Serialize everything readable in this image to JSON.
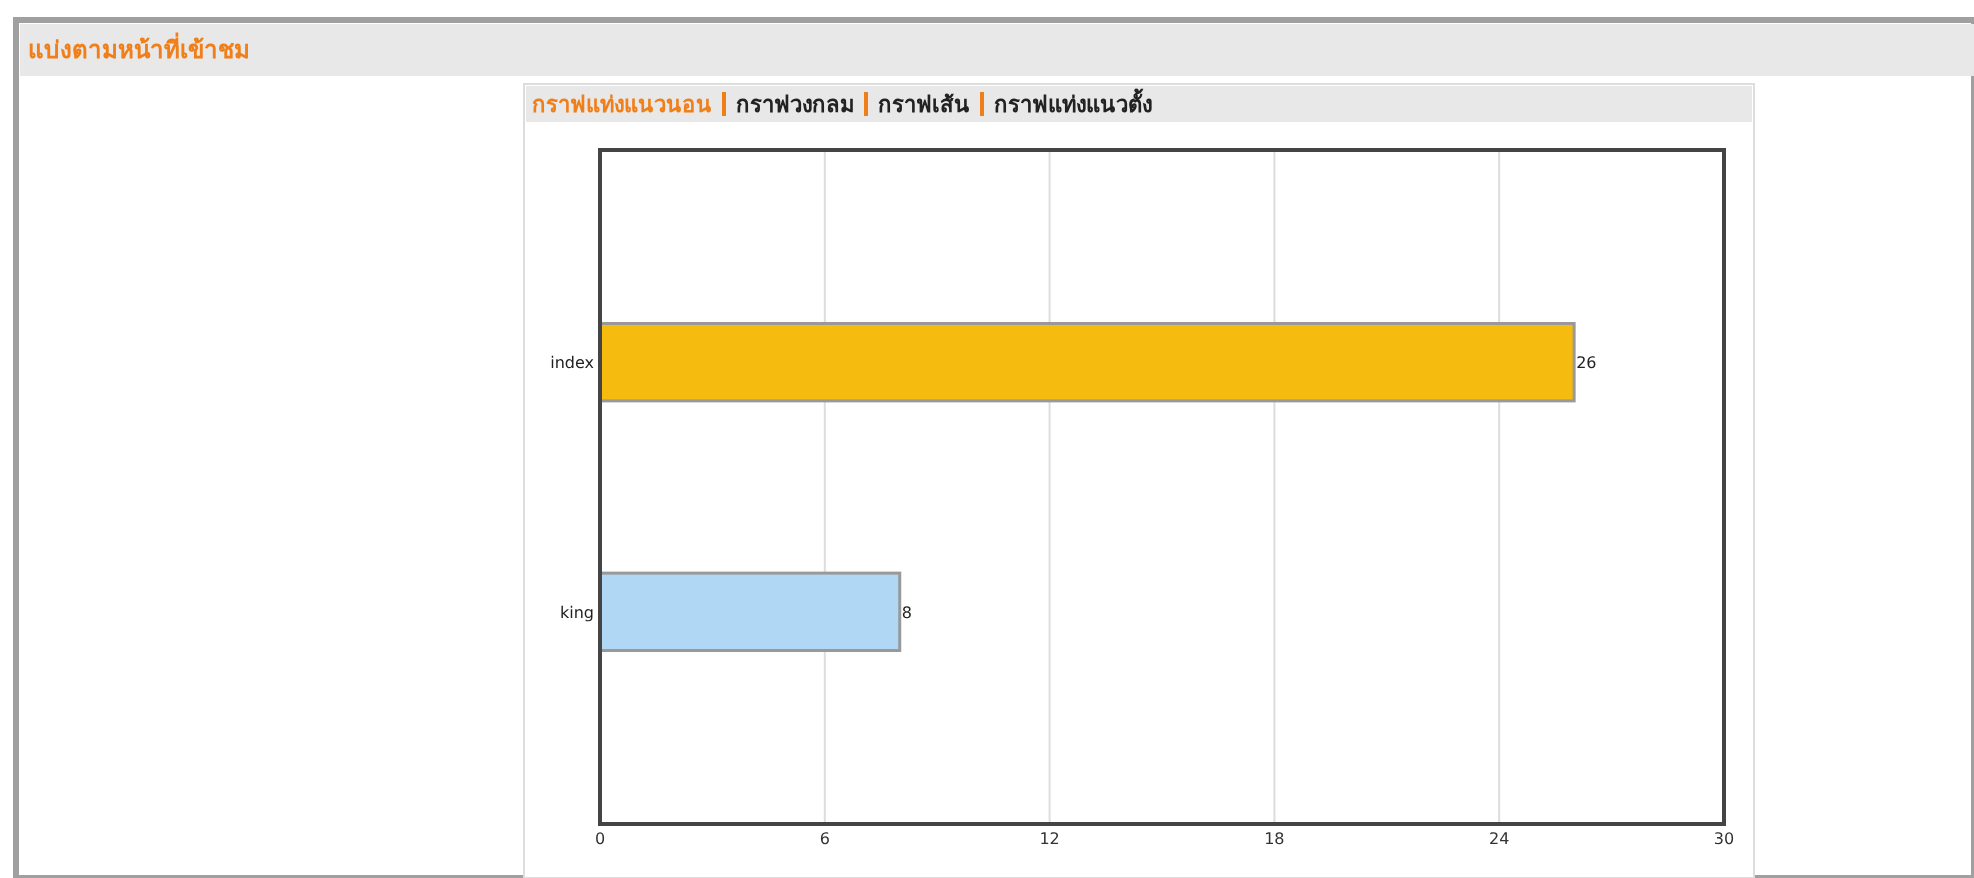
{
  "chart_data": {
    "type": "bar",
    "orientation": "horizontal",
    "title": "แบ่งตามหน้าที่เข้าชม",
    "annotations": [
      "กราฟแท่งแนวนอน",
      "กราฟวงกลม",
      "กราฟเส้น",
      "กราฟแท่งแนวตั้ง"
    ],
    "categories": [
      "index",
      "king"
    ],
    "values": [
      26,
      8
    ],
    "colors": [
      "#f5bb0f",
      "#b0d8f5"
    ],
    "xlim": [
      0,
      30
    ],
    "xticks": [
      0,
      6,
      12,
      18,
      24,
      30
    ],
    "grid": "x",
    "data_labels": true
  }
}
